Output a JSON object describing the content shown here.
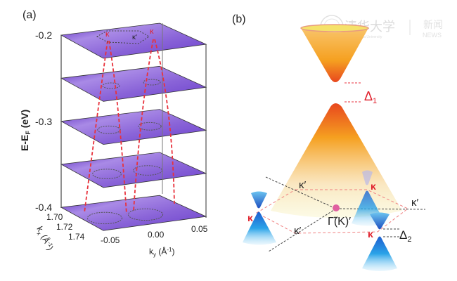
{
  "panel_a": {
    "label": "(a)",
    "z_axis": {
      "label": "E-E",
      "label_sub": "F",
      "label_unit": " (eV)",
      "ticks": [
        "-0.2",
        "-0.3",
        "-0.4"
      ]
    },
    "kx_axis": {
      "label": "k",
      "label_sub": "x",
      "label_unit": " (Å",
      "label_sup": "-1",
      "label_close": ")",
      "ticks": [
        "1.70",
        "1.72",
        "1.74"
      ]
    },
    "ky_axis": {
      "label": "k",
      "label_sub": "y",
      "label_unit": " (Å",
      "label_sup": "-1",
      "label_close": ")",
      "ticks": [
        "-0.05",
        "0.00",
        "0.05"
      ]
    },
    "top_labels": {
      "k_left": "κ",
      "k_prime": "κ'",
      "k_right": "κ"
    },
    "slice_count": 5,
    "colors": {
      "slice": "#8a5cd6",
      "slice_dark": "#4a1fb0",
      "trace": "#e8323c",
      "contour": "#555555"
    }
  },
  "panel_b": {
    "label": "(b)",
    "delta1": "Δ",
    "delta1_sub": "1",
    "delta2": "Δ",
    "delta2_sub": "2",
    "k_prime_labels": [
      "κ′",
      "κ′",
      "κ′"
    ],
    "k_labels": [
      "κ",
      "κ",
      "κ"
    ],
    "gamma_label": "Γ̃(K)′",
    "colors": {
      "cone_top": "#f5a623",
      "cone_tip": "#e8471e",
      "dirac": "#2aa3e8",
      "hex": "#f08080",
      "k_red": "#e0202c"
    }
  },
  "watermark": {
    "university": "清华大学",
    "university_en": "Tsinghua University",
    "news_cn": "新闻",
    "news_en": "NEWS"
  }
}
